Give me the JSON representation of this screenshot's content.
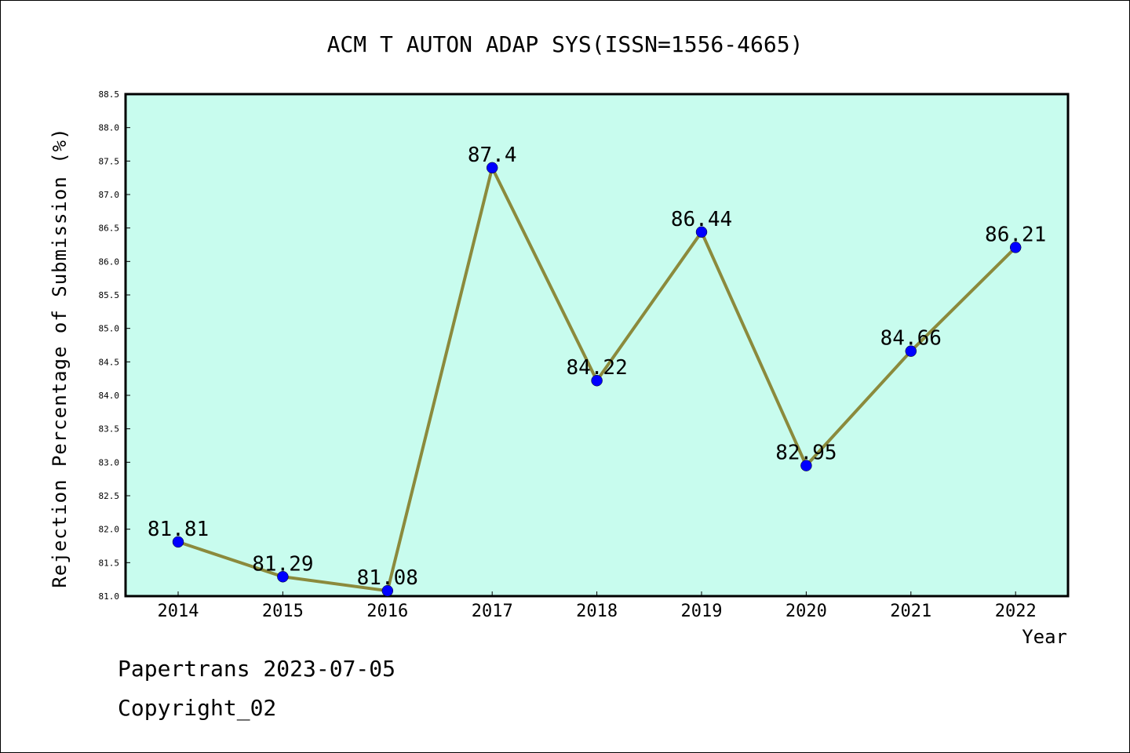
{
  "chart_data": {
    "type": "line",
    "title": "ACM T AUTON ADAP SYS(ISSN=1556-4665)",
    "xlabel": "Year",
    "ylabel": "Rejection Percentage of Submission (%)",
    "categories": [
      "2014",
      "2015",
      "2016",
      "2017",
      "2018",
      "2019",
      "2020",
      "2021",
      "2022"
    ],
    "values": [
      81.81,
      81.29,
      81.08,
      87.4,
      84.22,
      86.44,
      82.95,
      84.66,
      86.21
    ],
    "data_labels": [
      "81.81",
      "81.29",
      "81.08",
      "87.4",
      "84.22",
      "86.44",
      "82.95",
      "84.66",
      "86.21"
    ],
    "ylim": [
      81.0,
      88.5
    ],
    "yticks": [
      "81.0",
      "81.5",
      "82.0",
      "82.5",
      "83.0",
      "83.5",
      "84.0",
      "84.5",
      "85.0",
      "85.5",
      "86.0",
      "86.5",
      "87.0",
      "87.5",
      "88.0",
      "88.5"
    ],
    "grid": false,
    "colors": {
      "plot_background": "#c8fcee",
      "line": "#8b8a3c",
      "marker": "#0000ff"
    }
  },
  "footer": {
    "line1": "Papertrans 2023-07-05",
    "line2": "Copyright_02"
  }
}
